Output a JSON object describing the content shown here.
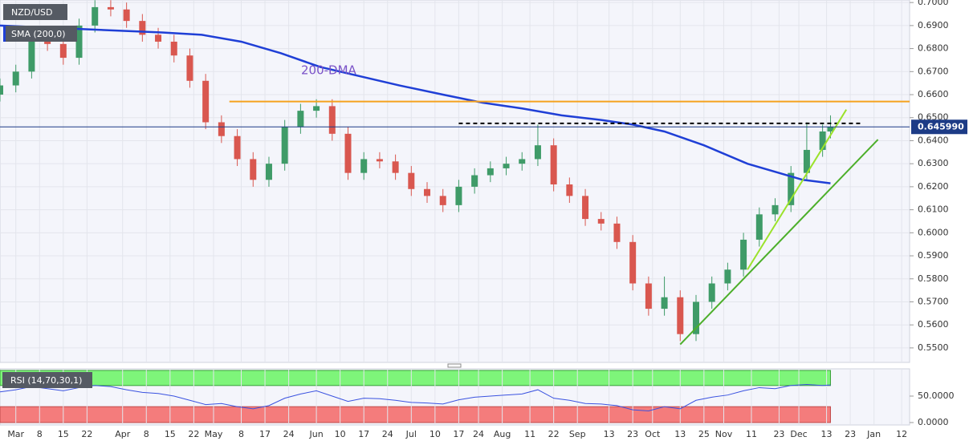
{
  "chart_data": [
    {
      "type": "candlestick",
      "title": "NZD/USD",
      "indicator": "SMA (200,0)",
      "xlim": [
        0,
        230
      ],
      "ylim": [
        0.5437,
        0.7011
      ],
      "yticks": [
        {
          "value": 0.55,
          "label": "0.5500"
        },
        {
          "value": 0.56,
          "label": "0.5600"
        },
        {
          "value": 0.57,
          "label": "0.5700"
        },
        {
          "value": 0.58,
          "label": "0.5800"
        },
        {
          "value": 0.59,
          "label": "0.5900"
        },
        {
          "value": 0.6,
          "label": "0.6000"
        },
        {
          "value": 0.61,
          "label": "0.6100"
        },
        {
          "value": 0.62,
          "label": "0.6200"
        },
        {
          "value": 0.63,
          "label": "0.6300"
        },
        {
          "value": 0.64,
          "label": "0.6400"
        },
        {
          "value": 0.65,
          "label": "0.6500"
        },
        {
          "value": 0.66,
          "label": "0.6600"
        },
        {
          "value": 0.67,
          "label": "0.6700"
        },
        {
          "value": 0.68,
          "label": "0.6800"
        },
        {
          "value": 0.69,
          "label": "0.6900"
        },
        {
          "value": 0.7,
          "label": "0.7000"
        }
      ],
      "x": [
        0,
        4,
        8,
        12,
        16,
        20,
        24,
        28,
        32,
        36,
        40,
        44,
        48,
        52,
        56,
        60,
        64,
        68,
        72,
        76,
        80,
        84,
        88,
        92,
        96,
        100,
        104,
        108,
        112,
        116,
        120,
        124,
        128,
        132,
        136,
        140,
        144,
        148,
        152,
        156,
        160,
        164,
        168,
        172,
        176,
        180,
        184,
        188,
        192,
        196,
        200,
        204,
        208,
        210
      ],
      "open": [
        0.66,
        0.664,
        0.67,
        0.684,
        0.682,
        0.676,
        0.69,
        0.698,
        0.697,
        0.692,
        0.686,
        0.683,
        0.677,
        0.666,
        0.648,
        0.642,
        0.632,
        0.623,
        0.63,
        0.646,
        0.653,
        0.655,
        0.643,
        0.626,
        0.632,
        0.631,
        0.626,
        0.619,
        0.616,
        0.612,
        0.62,
        0.625,
        0.628,
        0.63,
        0.632,
        0.638,
        0.621,
        0.616,
        0.606,
        0.604,
        0.596,
        0.578,
        0.567,
        0.572,
        0.556,
        0.57,
        0.578,
        0.584,
        0.597,
        0.608,
        0.612,
        0.626,
        0.636,
        0.644
      ],
      "high": [
        0.667,
        0.673,
        0.687,
        0.687,
        0.685,
        0.693,
        0.701,
        0.701,
        0.7,
        0.695,
        0.689,
        0.686,
        0.68,
        0.669,
        0.651,
        0.645,
        0.635,
        0.633,
        0.649,
        0.656,
        0.658,
        0.658,
        0.646,
        0.635,
        0.635,
        0.634,
        0.629,
        0.622,
        0.619,
        0.623,
        0.628,
        0.631,
        0.633,
        0.635,
        0.647,
        0.641,
        0.624,
        0.619,
        0.609,
        0.607,
        0.599,
        0.581,
        0.581,
        0.575,
        0.573,
        0.581,
        0.587,
        0.6,
        0.611,
        0.615,
        0.629,
        0.648,
        0.647,
        0.651
      ],
      "low": [
        0.657,
        0.661,
        0.667,
        0.679,
        0.673,
        0.673,
        0.687,
        0.694,
        0.689,
        0.683,
        0.68,
        0.674,
        0.663,
        0.645,
        0.639,
        0.629,
        0.62,
        0.62,
        0.627,
        0.643,
        0.65,
        0.64,
        0.623,
        0.623,
        0.628,
        0.623,
        0.616,
        0.613,
        0.609,
        0.609,
        0.617,
        0.622,
        0.625,
        0.627,
        0.629,
        0.618,
        0.613,
        0.603,
        0.601,
        0.593,
        0.575,
        0.564,
        0.564,
        0.553,
        0.553,
        0.567,
        0.575,
        0.581,
        0.594,
        0.605,
        0.609,
        0.623,
        0.633,
        0.641
      ],
      "close": [
        0.664,
        0.67,
        0.684,
        0.682,
        0.676,
        0.69,
        0.698,
        0.697,
        0.692,
        0.686,
        0.683,
        0.677,
        0.666,
        0.648,
        0.642,
        0.632,
        0.623,
        0.63,
        0.646,
        0.653,
        0.655,
        0.643,
        0.626,
        0.632,
        0.631,
        0.626,
        0.619,
        0.616,
        0.612,
        0.62,
        0.625,
        0.628,
        0.63,
        0.632,
        0.638,
        0.621,
        0.616,
        0.606,
        0.604,
        0.596,
        0.578,
        0.567,
        0.572,
        0.556,
        0.57,
        0.578,
        0.584,
        0.597,
        0.608,
        0.612,
        0.626,
        0.636,
        0.644,
        0.64599
      ],
      "up_color": "#3f9b68",
      "down_color": "#d9574f",
      "sma": {
        "name": "200-DMA",
        "color": "#1f3fd6",
        "x": [
          0,
          20,
          41,
          51,
          61,
          71,
          81,
          91,
          101,
          112,
          122,
          132,
          142,
          152,
          160,
          168,
          178,
          189,
          199,
          203,
          210
        ],
        "values": [
          0.69,
          0.6885,
          0.687,
          0.686,
          0.683,
          0.678,
          0.672,
          0.668,
          0.664,
          0.66,
          0.6565,
          0.654,
          0.651,
          0.649,
          0.647,
          0.644,
          0.638,
          0.63,
          0.625,
          0.623,
          0.6215
        ]
      },
      "lines": [
        {
          "color": "#f5a21e",
          "dashed": false,
          "x": [
            58,
            230
          ],
          "values": [
            0.657,
            0.657
          ]
        },
        {
          "color": "#000000",
          "dashed": true,
          "x": [
            116,
            218
          ],
          "values": [
            0.6475,
            0.6475
          ]
        },
        {
          "color": "#9be22b",
          "dashed": false,
          "x": [
            189,
            214
          ],
          "values": [
            0.584,
            0.6535
          ]
        },
        {
          "color": "#4caf2a",
          "dashed": false,
          "x": [
            172,
            222
          ],
          "values": [
            0.5515,
            0.6405
          ]
        }
      ],
      "last_price": {
        "value": 0.64599,
        "label": "0.645990",
        "color": "#1c3b86"
      }
    },
    {
      "type": "line",
      "title": "RSI (14,70,30,1)",
      "xlim": [
        0,
        230
      ],
      "ylim": [
        0,
        98.5
      ],
      "yticks": [
        {
          "value": 0,
          "label": "0.0000"
        },
        {
          "value": 50,
          "label": "50.0000"
        }
      ],
      "overbought": 70,
      "oversold": 30,
      "xticks": [
        {
          "value": 4,
          "label": "Mar"
        },
        {
          "value": 10,
          "label": "8"
        },
        {
          "value": 16,
          "label": "15"
        },
        {
          "value": 22,
          "label": "22"
        },
        {
          "value": 31,
          "label": "Apr"
        },
        {
          "value": 37,
          "label": "8"
        },
        {
          "value": 43,
          "label": "15"
        },
        {
          "value": 49,
          "label": "22"
        },
        {
          "value": 54,
          "label": "May"
        },
        {
          "value": 61,
          "label": "8"
        },
        {
          "value": 67,
          "label": "17"
        },
        {
          "value": 73,
          "label": "24"
        },
        {
          "value": 80,
          "label": "Jun"
        },
        {
          "value": 86,
          "label": "10"
        },
        {
          "value": 92,
          "label": "17"
        },
        {
          "value": 98,
          "label": "24"
        },
        {
          "value": 104,
          "label": "Jul"
        },
        {
          "value": 110,
          "label": "10"
        },
        {
          "value": 116,
          "label": "17"
        },
        {
          "value": 121,
          "label": "24"
        },
        {
          "value": 127,
          "label": "Aug"
        },
        {
          "value": 134,
          "label": "11"
        },
        {
          "value": 140,
          "label": "22"
        },
        {
          "value": 146,
          "label": "Sep"
        },
        {
          "value": 154,
          "label": "13"
        },
        {
          "value": 160,
          "label": "23"
        },
        {
          "value": 165,
          "label": "Oct"
        },
        {
          "value": 172,
          "label": "13"
        },
        {
          "value": 178,
          "label": "25"
        },
        {
          "value": 183,
          "label": "Nov"
        },
        {
          "value": 190,
          "label": "11"
        },
        {
          "value": 197,
          "label": "23"
        },
        {
          "value": 202,
          "label": "Dec"
        },
        {
          "value": 209,
          "label": "13"
        },
        {
          "value": 215,
          "label": "23"
        },
        {
          "value": 221,
          "label": "Jan"
        },
        {
          "value": 228,
          "label": "12"
        }
      ],
      "x": [
        0,
        4,
        8,
        12,
        16,
        20,
        24,
        28,
        32,
        36,
        40,
        44,
        48,
        52,
        56,
        60,
        64,
        68,
        72,
        76,
        80,
        84,
        88,
        92,
        96,
        100,
        104,
        108,
        112,
        116,
        120,
        124,
        128,
        132,
        136,
        140,
        144,
        148,
        152,
        156,
        160,
        164,
        168,
        172,
        176,
        180,
        184,
        188,
        192,
        196,
        200,
        204,
        208,
        210
      ],
      "values": [
        58,
        62,
        68,
        64,
        60,
        66,
        70,
        68,
        62,
        57,
        55,
        50,
        42,
        34,
        36,
        30,
        26,
        32,
        46,
        54,
        60,
        50,
        40,
        46,
        45,
        42,
        38,
        37,
        35,
        43,
        48,
        50,
        52,
        54,
        62,
        46,
        42,
        36,
        35,
        32,
        24,
        22,
        30,
        26,
        42,
        48,
        52,
        60,
        66,
        64,
        70,
        72,
        70,
        71
      ],
      "color": "#3a52e0"
    }
  ]
}
